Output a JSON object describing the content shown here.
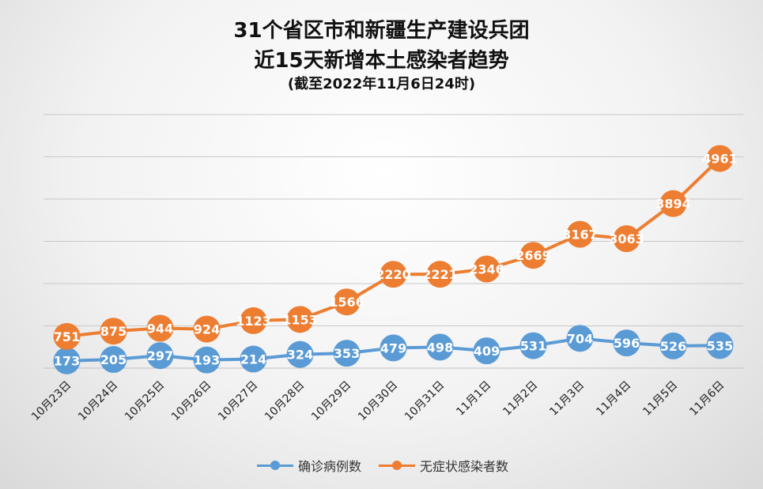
{
  "chart_data": {
    "type": "line",
    "title_line1": "31个省区市和新疆生产建设兵团",
    "title_line2": "近15天新增本土感染者趋势",
    "subtitle": "(截至2022年11月6日24时)",
    "categories": [
      "10月23日",
      "10月24日",
      "10月25日",
      "10月26日",
      "10月27日",
      "10月28日",
      "10月29日",
      "10月30日",
      "10月31日",
      "11月1日",
      "11月2日",
      "11月3日",
      "11月4日",
      "11月5日",
      "11月6日"
    ],
    "series": [
      {
        "name": "确诊病例数",
        "color": "#5b9bd5",
        "values": [
          173,
          205,
          297,
          193,
          214,
          324,
          353,
          479,
          498,
          409,
          531,
          704,
          596,
          526,
          535
        ]
      },
      {
        "name": "无症状感染者数",
        "color": "#ed7d31",
        "values": [
          751,
          875,
          944,
          924,
          1123,
          1153,
          1566,
          2220,
          2221,
          2346,
          2669,
          3167,
          3063,
          3894,
          4961
        ]
      }
    ],
    "ylim": [
      0,
      6000
    ],
    "grid": true,
    "legend_position": "bottom"
  }
}
